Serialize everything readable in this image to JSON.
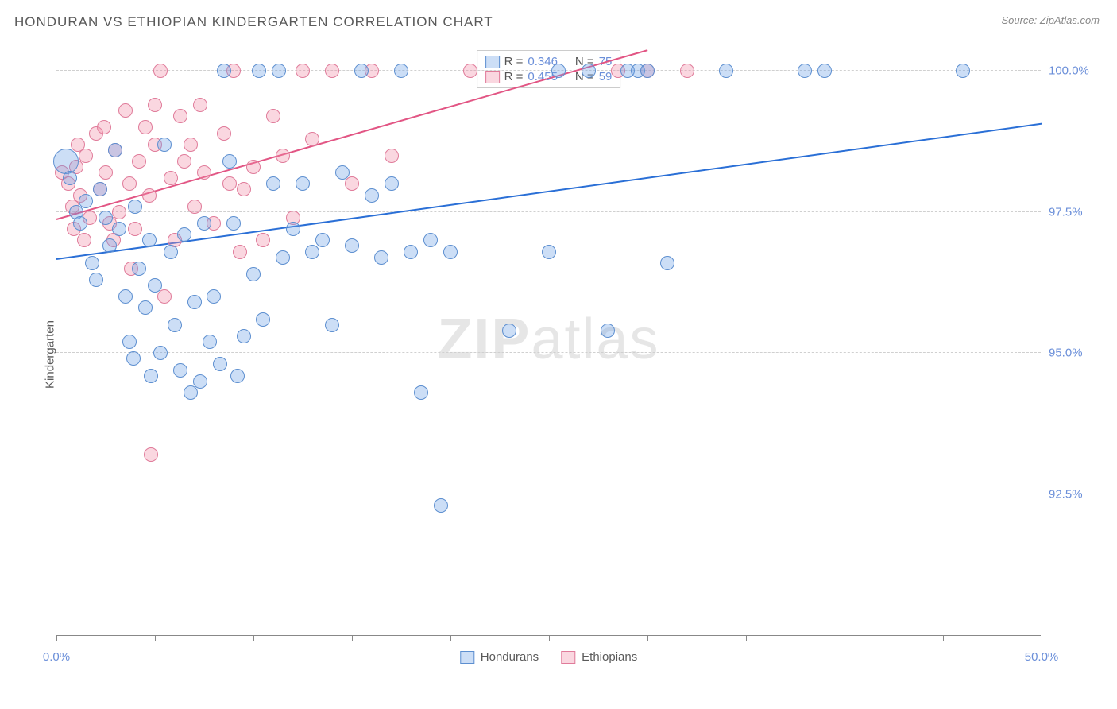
{
  "title": "HONDURAN VS ETHIOPIAN KINDERGARTEN CORRELATION CHART",
  "source_label": "Source: ZipAtlas.com",
  "ylabel": "Kindergarten",
  "watermark": {
    "bold": "ZIP",
    "rest": "atlas"
  },
  "chart": {
    "type": "scatter",
    "xlim": [
      0,
      50
    ],
    "ylim": [
      90,
      100.5
    ],
    "xtick_positions": [
      0,
      5,
      10,
      15,
      20,
      25,
      30,
      35,
      40,
      45,
      50
    ],
    "xtick_labels": {
      "0": "0.0%",
      "50": "50.0%"
    },
    "ytick_positions": [
      92.5,
      95.0,
      97.5,
      100.0
    ],
    "ytick_labels": [
      "92.5%",
      "95.0%",
      "97.5%",
      "100.0%"
    ],
    "grid_color": "#d0d0d0",
    "axis_color": "#888888",
    "background_color": "#ffffff",
    "point_radius": 9,
    "point_radius_large": 16
  },
  "series": {
    "hondurans": {
      "label": "Hondurans",
      "color_fill": "rgba(110,160,230,0.35)",
      "color_stroke": "#5d8fd0",
      "r_value": "0.346",
      "n_value": "75",
      "trend": {
        "x1": 0,
        "y1": 96.7,
        "x2": 50,
        "y2": 99.1,
        "color": "#2a6fd6"
      },
      "points": [
        [
          0.5,
          98.4,
          16
        ],
        [
          0.7,
          98.1
        ],
        [
          1.0,
          97.5
        ],
        [
          1.2,
          97.3
        ],
        [
          1.5,
          97.7
        ],
        [
          1.8,
          96.6
        ],
        [
          2.0,
          96.3
        ],
        [
          2.2,
          97.9
        ],
        [
          2.5,
          97.4
        ],
        [
          2.7,
          96.9
        ],
        [
          3.0,
          98.6
        ],
        [
          3.2,
          97.2
        ],
        [
          3.5,
          96.0
        ],
        [
          3.7,
          95.2
        ],
        [
          4.0,
          97.6
        ],
        [
          4.2,
          96.5
        ],
        [
          4.5,
          95.8
        ],
        [
          4.7,
          97.0
        ],
        [
          5.0,
          96.2
        ],
        [
          5.3,
          95.0
        ],
        [
          5.5,
          98.7
        ],
        [
          5.8,
          96.8
        ],
        [
          6.0,
          95.5
        ],
        [
          6.3,
          94.7
        ],
        [
          6.5,
          97.1
        ],
        [
          7.0,
          95.9
        ],
        [
          7.3,
          94.5
        ],
        [
          7.5,
          97.3
        ],
        [
          8.0,
          96.0
        ],
        [
          8.3,
          94.8
        ],
        [
          8.5,
          100.0
        ],
        [
          9.0,
          97.3
        ],
        [
          9.5,
          95.3
        ],
        [
          10.0,
          96.4
        ],
        [
          10.3,
          100.0
        ],
        [
          10.5,
          95.6
        ],
        [
          11.0,
          98.0
        ],
        [
          11.3,
          100.0
        ],
        [
          11.5,
          96.7
        ],
        [
          12.0,
          97.2
        ],
        [
          12.5,
          98.0
        ],
        [
          13.0,
          96.8
        ],
        [
          13.5,
          97.0
        ],
        [
          14.0,
          95.5
        ],
        [
          14.5,
          98.2
        ],
        [
          15.0,
          96.9
        ],
        [
          15.5,
          100.0
        ],
        [
          16.0,
          97.8
        ],
        [
          16.5,
          96.7
        ],
        [
          17.0,
          98.0
        ],
        [
          17.5,
          100.0
        ],
        [
          18.0,
          96.8
        ],
        [
          18.5,
          94.3
        ],
        [
          19.0,
          97.0
        ],
        [
          19.5,
          92.3
        ],
        [
          20.0,
          96.8
        ],
        [
          23.0,
          95.4
        ],
        [
          25.0,
          96.8
        ],
        [
          25.5,
          100.0
        ],
        [
          27.0,
          100.0
        ],
        [
          28.0,
          95.4
        ],
        [
          29.0,
          100.0
        ],
        [
          29.5,
          100.0
        ],
        [
          30.0,
          100.0
        ],
        [
          31.0,
          96.6
        ],
        [
          34.0,
          100.0
        ],
        [
          38.0,
          100.0
        ],
        [
          39.0,
          100.0
        ],
        [
          46.0,
          100.0
        ],
        [
          6.8,
          94.3
        ],
        [
          9.2,
          94.6
        ],
        [
          4.8,
          94.6
        ],
        [
          3.9,
          94.9
        ],
        [
          7.8,
          95.2
        ],
        [
          8.8,
          98.4
        ]
      ]
    },
    "ethiopians": {
      "label": "Ethiopians",
      "color_fill": "rgba(240,140,165,0.35)",
      "color_stroke": "#e07b9a",
      "r_value": "0.455",
      "n_value": "59",
      "trend": {
        "x1": 0,
        "y1": 97.4,
        "x2": 30,
        "y2": 100.4,
        "color": "#e25584"
      },
      "points": [
        [
          0.3,
          98.2
        ],
        [
          0.6,
          98.0
        ],
        [
          0.8,
          97.6
        ],
        [
          1.0,
          98.3
        ],
        [
          1.2,
          97.8
        ],
        [
          1.5,
          98.5
        ],
        [
          1.7,
          97.4
        ],
        [
          2.0,
          98.9
        ],
        [
          2.2,
          97.9
        ],
        [
          2.5,
          98.2
        ],
        [
          2.7,
          97.3
        ],
        [
          3.0,
          98.6
        ],
        [
          3.2,
          97.5
        ],
        [
          3.5,
          99.3
        ],
        [
          3.7,
          98.0
        ],
        [
          4.0,
          97.2
        ],
        [
          4.2,
          98.4
        ],
        [
          4.5,
          99.0
        ],
        [
          4.7,
          97.8
        ],
        [
          5.0,
          98.7
        ],
        [
          5.3,
          100.0
        ],
        [
          5.5,
          96.0
        ],
        [
          5.8,
          98.1
        ],
        [
          6.0,
          97.0
        ],
        [
          6.3,
          99.2
        ],
        [
          6.5,
          98.4
        ],
        [
          7.0,
          97.6
        ],
        [
          7.3,
          99.4
        ],
        [
          7.5,
          98.2
        ],
        [
          8.0,
          97.3
        ],
        [
          8.5,
          98.9
        ],
        [
          9.0,
          100.0
        ],
        [
          9.3,
          96.8
        ],
        [
          9.5,
          97.9
        ],
        [
          10.0,
          98.3
        ],
        [
          10.5,
          97.0
        ],
        [
          11.0,
          99.2
        ],
        [
          11.5,
          98.5
        ],
        [
          12.0,
          97.4
        ],
        [
          12.5,
          100.0
        ],
        [
          13.0,
          98.8
        ],
        [
          14.0,
          100.0
        ],
        [
          15.0,
          98.0
        ],
        [
          16.0,
          100.0
        ],
        [
          17.0,
          98.5
        ],
        [
          21.0,
          100.0
        ],
        [
          28.5,
          100.0
        ],
        [
          30.0,
          100.0
        ],
        [
          32.0,
          100.0
        ],
        [
          4.8,
          93.2
        ],
        [
          2.9,
          97.0
        ],
        [
          1.4,
          97.0
        ],
        [
          0.9,
          97.2
        ],
        [
          3.8,
          96.5
        ],
        [
          6.8,
          98.7
        ],
        [
          8.8,
          98.0
        ],
        [
          1.1,
          98.7
        ],
        [
          2.4,
          99.0
        ],
        [
          5.0,
          99.4
        ]
      ]
    }
  },
  "legend_labels": {
    "r_prefix": "R =",
    "n_prefix": "N ="
  },
  "colors": {
    "title_text": "#5a5a5a",
    "source_text": "#888888",
    "tick_label_text": "#6b8fd9"
  }
}
